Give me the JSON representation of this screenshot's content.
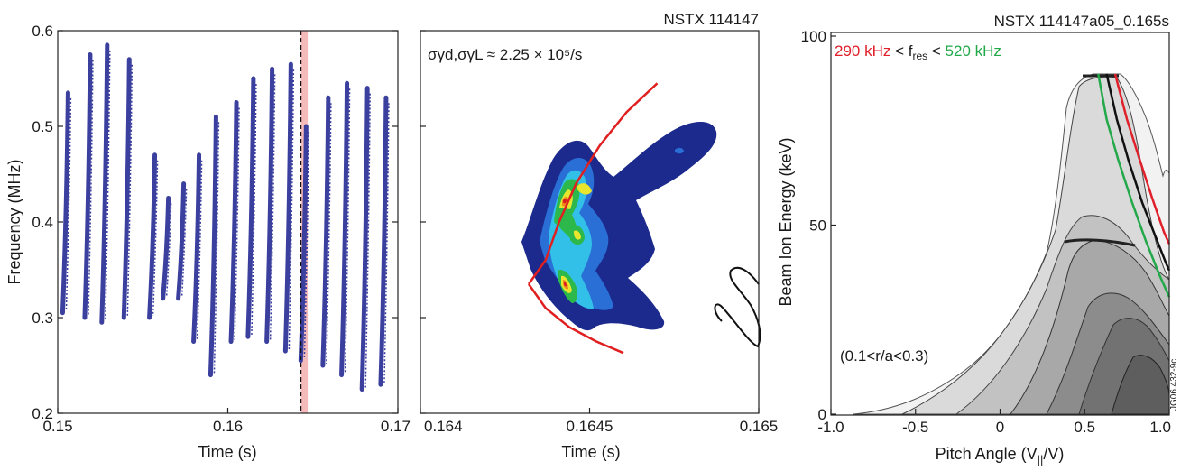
{
  "chart_data": [
    {
      "type": "scatter",
      "description_kind": "spectrogram",
      "title": "",
      "xlabel": "Time (s)",
      "ylabel": "Frequency (MHz)",
      "xlim": [
        0.15,
        0.17
      ],
      "ylim": [
        0.2,
        0.6
      ],
      "xticks": [
        0.15,
        0.16,
        0.17
      ],
      "xtick_labels": [
        "0.15",
        "0.16",
        "0.17"
      ],
      "yticks": [
        0.2,
        0.3,
        0.4,
        0.5,
        0.6
      ],
      "ytick_labels": [
        "0.2",
        "0.3",
        "0.4",
        "0.5",
        "0.6"
      ],
      "highlight_time": 0.1645,
      "highlight_band": [
        0.1643,
        0.1647
      ],
      "line_color": "#3b3f9e",
      "band_color": "#f4b4b4",
      "chirps": [
        {
          "t": 0.1505,
          "f_top": 0.535,
          "f_bot": 0.305
        },
        {
          "t": 0.1518,
          "f_top": 0.575,
          "f_bot": 0.3
        },
        {
          "t": 0.1528,
          "f_top": 0.585,
          "f_bot": 0.295
        },
        {
          "t": 0.1541,
          "f_top": 0.57,
          "f_bot": 0.3
        },
        {
          "t": 0.1556,
          "f_top": 0.47,
          "f_bot": 0.3
        },
        {
          "t": 0.1564,
          "f_top": 0.425,
          "f_bot": 0.32
        },
        {
          "t": 0.1573,
          "f_top": 0.44,
          "f_bot": 0.32
        },
        {
          "t": 0.1582,
          "f_top": 0.47,
          "f_bot": 0.275
        },
        {
          "t": 0.1592,
          "f_top": 0.51,
          "f_bot": 0.24
        },
        {
          "t": 0.1604,
          "f_top": 0.525,
          "f_bot": 0.275
        },
        {
          "t": 0.1614,
          "f_top": 0.55,
          "f_bot": 0.28
        },
        {
          "t": 0.1625,
          "f_top": 0.56,
          "f_bot": 0.275
        },
        {
          "t": 0.1636,
          "f_top": 0.565,
          "f_bot": 0.265
        },
        {
          "t": 0.1645,
          "f_top": 0.5,
          "f_bot": 0.255
        },
        {
          "t": 0.1658,
          "f_top": 0.53,
          "f_bot": 0.25
        },
        {
          "t": 0.1669,
          "f_top": 0.545,
          "f_bot": 0.24
        },
        {
          "t": 0.1681,
          "f_top": 0.54,
          "f_bot": 0.225
        },
        {
          "t": 0.1692,
          "f_top": 0.53,
          "f_bot": 0.23
        }
      ]
    },
    {
      "type": "heatmap",
      "description_kind": "contour",
      "title": "NSTX 114147",
      "annotation": "σγd,σγL ≈ 2.25 × 10⁵/s",
      "xlabel": "Time (s)",
      "ylabel": "",
      "xlim": [
        0.164,
        0.165
      ],
      "ylim": [
        0.2,
        0.6
      ],
      "xticks": [
        0.164,
        0.1645,
        0.165
      ],
      "xtick_labels": [
        "0.164",
        "0.1645",
        "0.165"
      ],
      "curve_color": "#e02020",
      "contour_colors": [
        "#1b2a8c",
        "#2a6fd6",
        "#32c0e8",
        "#2cb84a",
        "#e7e52e",
        "#f08a1c",
        "#d81f1f"
      ],
      "red_curve": [
        [
          0.16432,
          0.335
        ],
        [
          0.16437,
          0.36
        ],
        [
          0.16441,
          0.4
        ],
        [
          0.16446,
          0.44
        ],
        [
          0.16453,
          0.48
        ],
        [
          0.16461,
          0.515
        ],
        [
          0.1647,
          0.545
        ]
      ],
      "red_curve_low": [
        [
          0.16432,
          0.335
        ],
        [
          0.1644,
          0.31
        ],
        [
          0.1645,
          0.285
        ],
        [
          0.1646,
          0.262
        ]
      ]
    },
    {
      "type": "heatmap",
      "description_kind": "contour",
      "title": "NSTX 114147a05_0.165s",
      "legend_prefix": "290 kHz",
      "legend_mid": " < f",
      "legend_sub": "res",
      "legend_lt": " < ",
      "legend_suffix": "520 kHz",
      "region_label": "(0.1<r/a<0.3)",
      "side_id": "JG06.432-9c",
      "xlabel_main": "Pitch Angle (V",
      "xlabel_sub": "||",
      "xlabel_tail": "/V)",
      "ylabel": "Beam Ion Energy (keV)",
      "xlim": [
        -1.0,
        1.0
      ],
      "ylim": [
        0,
        100
      ],
      "xticks": [
        -1.0,
        -0.5,
        0,
        0.5,
        1.0
      ],
      "xtick_labels": [
        "-1.0",
        "-0.5",
        "0",
        "0.5",
        "1.0"
      ],
      "yticks": [
        0,
        50,
        100
      ],
      "ytick_labels": [
        "0",
        "50",
        "100"
      ],
      "red_color": "#e0202a",
      "green_color": "#23a84a",
      "red_curve": [
        [
          0.68,
          90
        ],
        [
          0.75,
          78
        ],
        [
          0.82,
          68
        ],
        [
          0.9,
          57
        ],
        [
          0.97,
          48
        ],
        [
          1.0,
          45
        ]
      ],
      "black_curve": [
        [
          0.63,
          90
        ],
        [
          0.69,
          78
        ],
        [
          0.76,
          67
        ],
        [
          0.84,
          56
        ],
        [
          0.91,
          48
        ],
        [
          0.98,
          40
        ],
        [
          1.0,
          38
        ]
      ],
      "green_curve": [
        [
          0.58,
          90
        ],
        [
          0.63,
          78
        ],
        [
          0.7,
          67
        ],
        [
          0.78,
          56
        ],
        [
          0.86,
          46
        ],
        [
          0.94,
          37
        ],
        [
          1.0,
          31
        ]
      ]
    }
  ]
}
